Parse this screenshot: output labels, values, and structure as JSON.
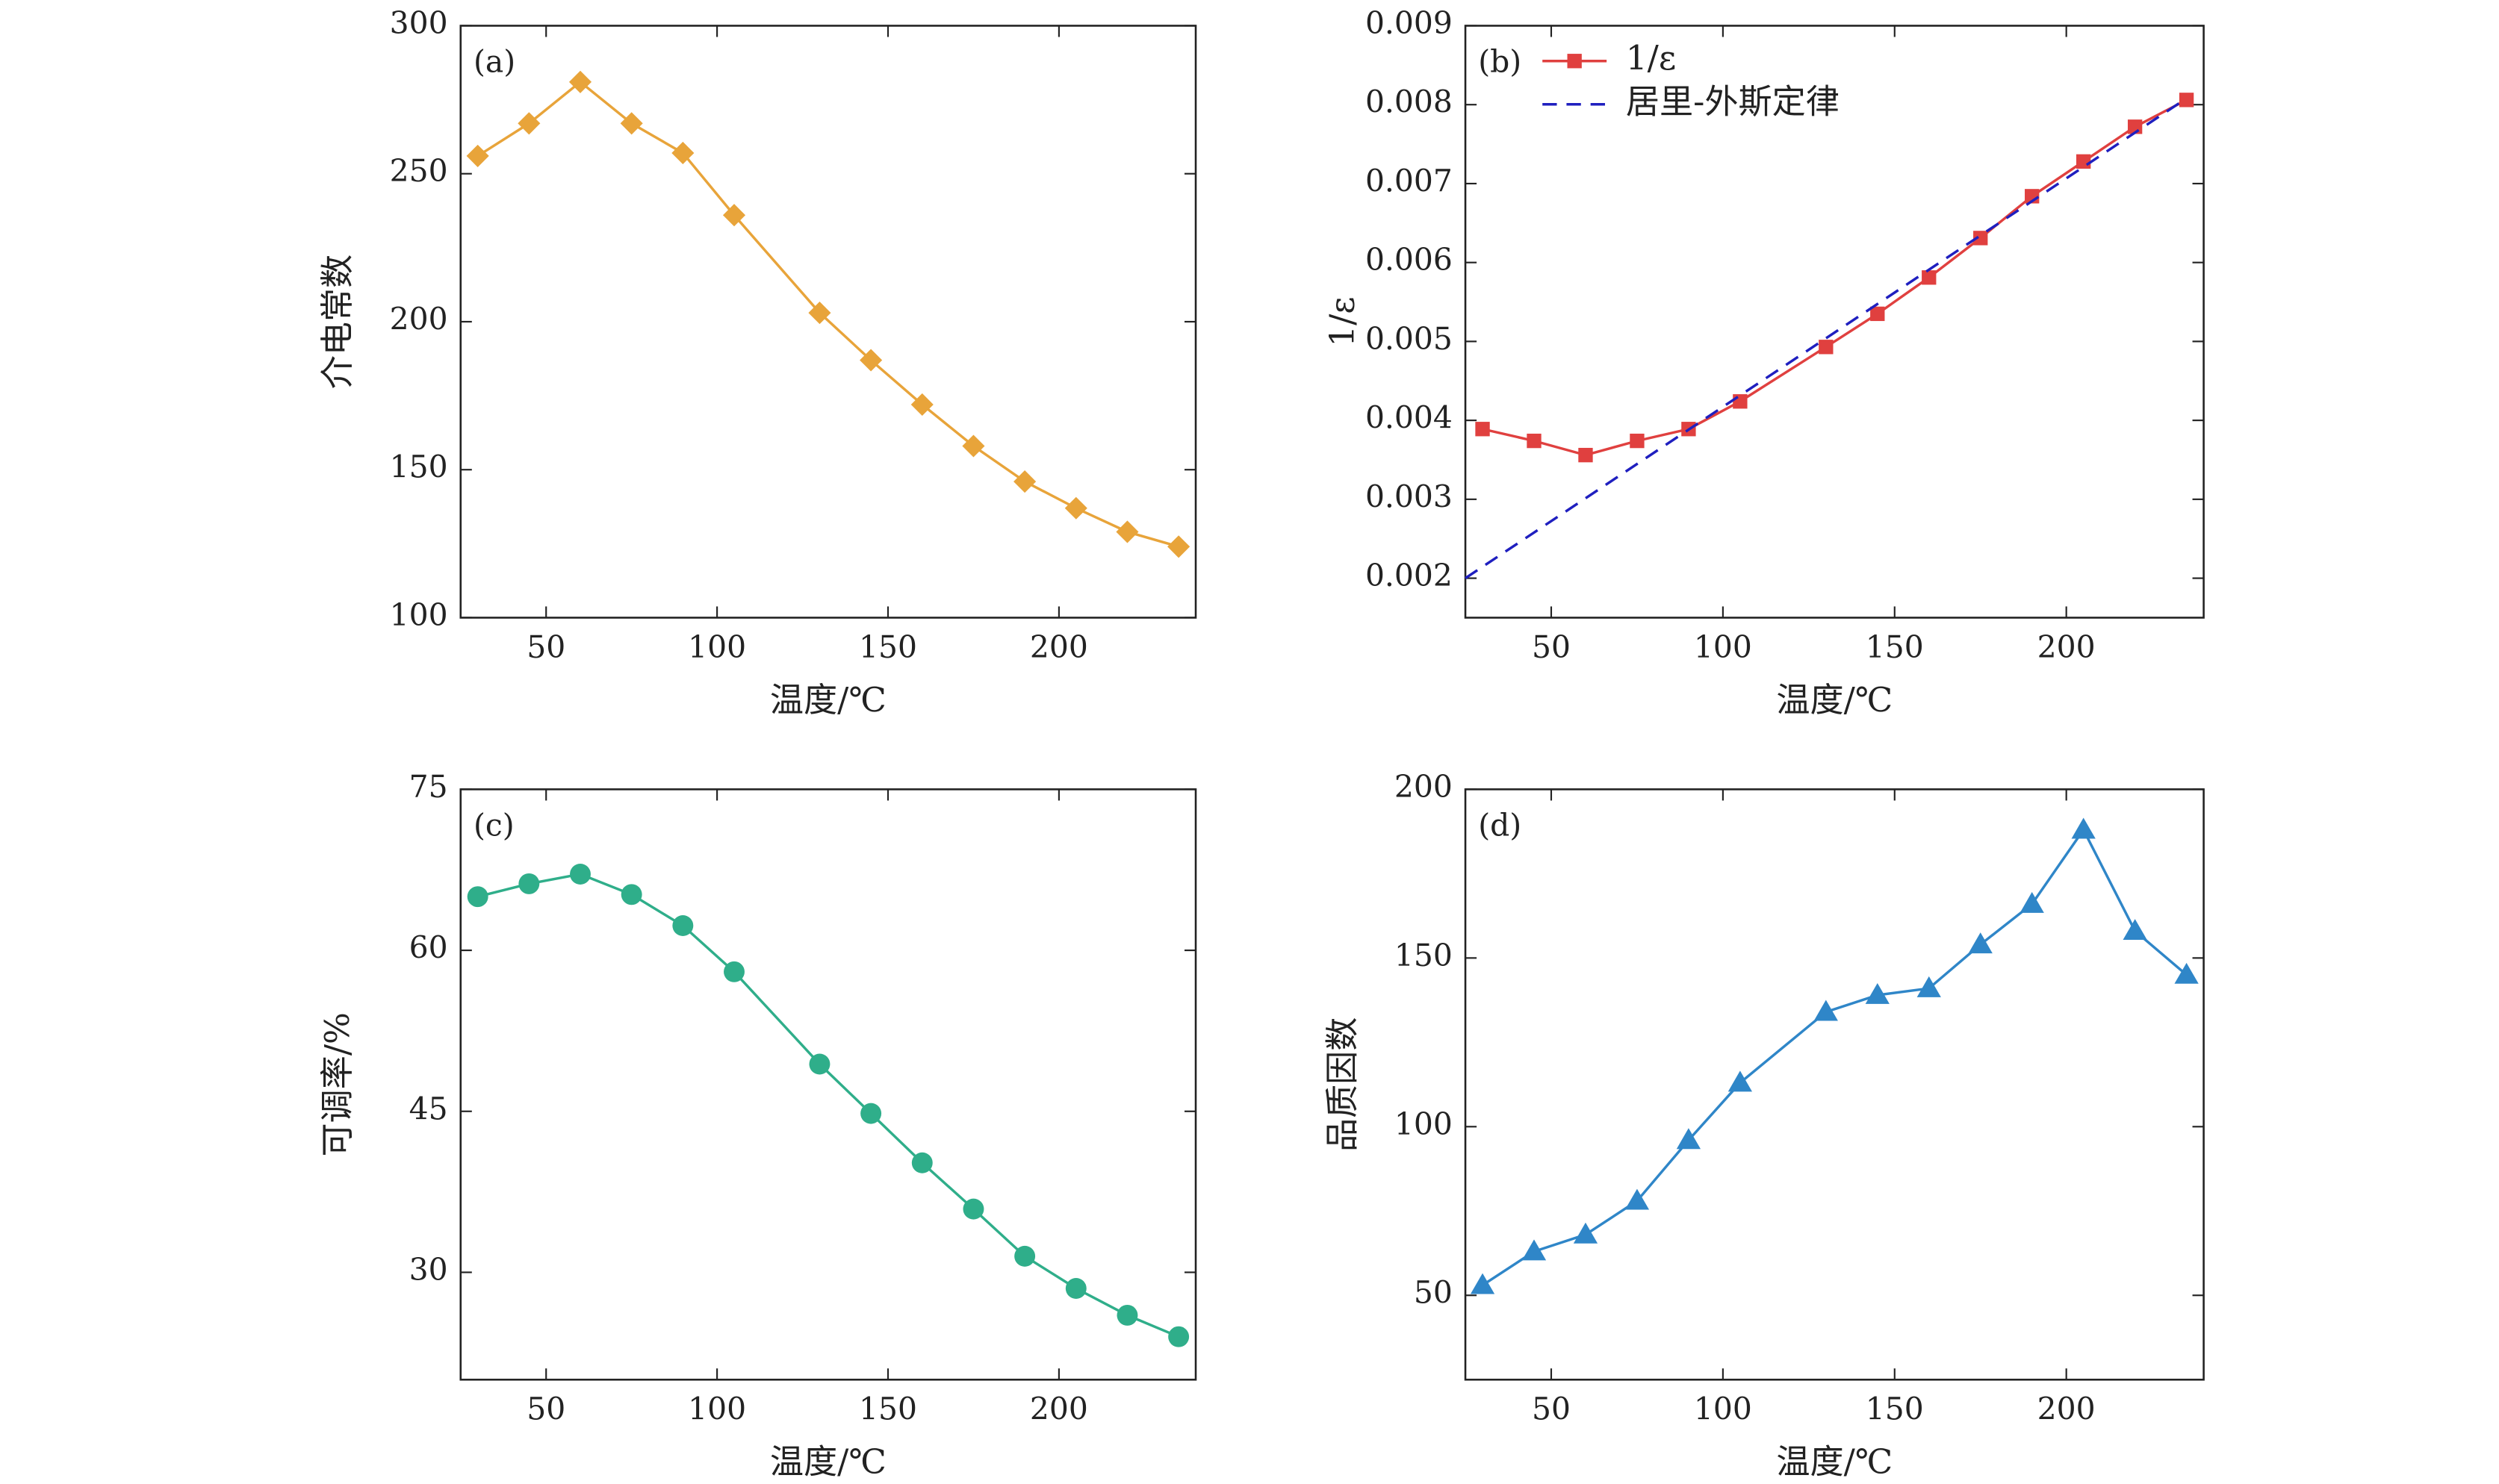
{
  "chart_data": [
    {
      "type": "line",
      "annotation": "(a)",
      "xlabel": "温度/℃",
      "ylabel": "介电常数",
      "x": [
        30,
        45,
        60,
        75,
        90,
        105,
        130,
        145,
        160,
        175,
        190,
        205,
        220,
        235
      ],
      "series": [
        {
          "color": "#e8a43a",
          "marker": "diamond",
          "values": [
            256,
            267,
            281,
            267,
            257,
            236,
            203,
            187,
            172,
            158,
            146,
            137,
            129,
            124
          ]
        }
      ],
      "xlim": [
        25,
        240
      ],
      "ylim": [
        100,
        300
      ],
      "xticks": [
        50,
        100,
        150,
        200
      ],
      "yticks": [
        100,
        150,
        200,
        250,
        300
      ]
    },
    {
      "type": "line",
      "annotation": "(b)",
      "xlabel": "温度/℃",
      "ylabel": "1/ε",
      "legend": "upper left",
      "x": [
        30,
        45,
        60,
        75,
        90,
        105,
        130,
        145,
        160,
        175,
        190,
        205,
        220,
        235
      ],
      "series": [
        {
          "name": "1/ε",
          "color": "#e0403f",
          "marker": "square",
          "values": [
            0.00389,
            0.00374,
            0.00356,
            0.00374,
            0.00389,
            0.00424,
            0.00493,
            0.00535,
            0.00581,
            0.00631,
            0.00684,
            0.00728,
            0.00772,
            0.00806
          ]
        },
        {
          "name": "居里-外斯定律",
          "color": "#1f1fbf",
          "dashed": true,
          "x": [
            25,
            235
          ],
          "values": [
            0.002,
            0.00808
          ]
        }
      ],
      "xlim": [
        25,
        240
      ],
      "ylim": [
        0.0015,
        0.009
      ],
      "xticks": [
        50,
        100,
        150,
        200
      ],
      "yticks": [
        0.002,
        0.003,
        0.004,
        0.005,
        0.006,
        0.007,
        0.008,
        0.009
      ]
    },
    {
      "type": "line",
      "annotation": "(c)",
      "xlabel": "温度/℃",
      "ylabel": "可调率/%",
      "x": [
        30,
        45,
        60,
        75,
        90,
        105,
        130,
        145,
        160,
        175,
        190,
        205,
        220,
        235
      ],
      "series": [
        {
          "color": "#2fae8a",
          "marker": "circle",
          "values": [
            65.0,
            66.2,
            67.1,
            65.2,
            62.3,
            58.0,
            49.4,
            44.8,
            40.2,
            35.9,
            31.5,
            28.5,
            26.0,
            24.0
          ]
        }
      ],
      "xlim": [
        25,
        240
      ],
      "ylim": [
        20,
        75
      ],
      "xticks": [
        50,
        100,
        150,
        200
      ],
      "yticks": [
        30,
        45,
        60,
        75
      ]
    },
    {
      "type": "line",
      "annotation": "(d)",
      "xlabel": "温度/℃",
      "ylabel": "品质因数",
      "x": [
        30,
        45,
        60,
        75,
        90,
        105,
        130,
        145,
        160,
        175,
        190,
        205,
        220,
        235
      ],
      "series": [
        {
          "color": "#2f86c8",
          "marker": "triangle",
          "values": [
            53,
            63,
            68,
            78,
            96,
            113,
            134,
            139,
            141,
            154,
            166,
            188,
            158,
            145
          ]
        }
      ],
      "xlim": [
        25,
        240
      ],
      "ylim": [
        25,
        200
      ],
      "xticks": [
        50,
        100,
        150,
        200
      ],
      "yticks": [
        50,
        100,
        150,
        200
      ]
    }
  ]
}
